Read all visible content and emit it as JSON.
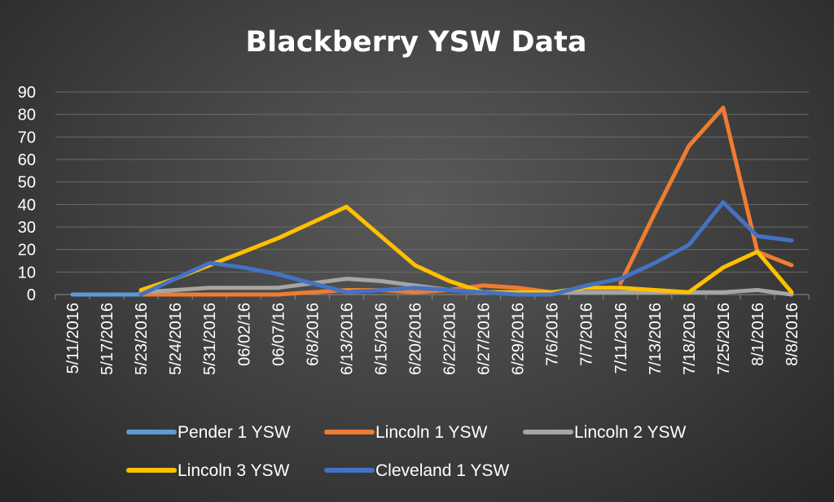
{
  "chart_data": {
    "type": "line",
    "title": "Blackberry YSW Data",
    "xlabel": "",
    "ylabel": "",
    "ylim": [
      0,
      90
    ],
    "yticks": [
      0,
      10,
      20,
      30,
      40,
      50,
      60,
      70,
      80,
      90
    ],
    "grid": true,
    "legend_position": "bottom",
    "categories": [
      "5/11/2016",
      "5/17/2016",
      "5/23/2016",
      "5/24/2016",
      "5/31/2016",
      "06/02/16",
      "06/07/16",
      "6/8/2016",
      "6/13/2016",
      "6/15/2016",
      "6/20/2016",
      "6/22/2016",
      "6/27/2016",
      "6/29/2016",
      "7/6/2016",
      "7/7/2016",
      "7/11/2016",
      "7/13/2016",
      "7/18/2016",
      "7/25/2016",
      "8/1/2016",
      "8/8/2016"
    ],
    "series": [
      {
        "name": "Pender 1 YSW",
        "color": "#5b9bd5",
        "values": [
          0,
          0,
          0,
          null,
          null,
          null,
          null,
          null,
          null,
          null,
          null,
          null,
          null,
          null,
          null,
          null,
          null,
          null,
          null,
          null,
          null,
          null
        ]
      },
      {
        "name": "Lincoln 1 YSW",
        "color": "#ed7d31",
        "values": [
          null,
          null,
          0,
          0,
          0,
          0,
          0,
          1,
          2,
          2,
          1,
          2,
          4,
          3,
          1,
          null,
          5,
          36,
          66,
          83,
          19,
          13
        ]
      },
      {
        "name": "Lincoln 2 YSW",
        "color": "#a5a5a5",
        "values": [
          null,
          null,
          1,
          2,
          3,
          3,
          3,
          5,
          7,
          6,
          4,
          2,
          1,
          1,
          1,
          1,
          1,
          1,
          1,
          1,
          2,
          0
        ]
      },
      {
        "name": "Lincoln 3 YSW",
        "color": "#ffc000",
        "values": [
          null,
          null,
          2,
          7,
          13,
          19,
          25,
          32,
          39,
          26,
          13,
          6,
          1,
          1,
          1,
          3,
          3,
          2,
          1,
          12,
          19,
          1
        ]
      },
      {
        "name": "Cleveland 1 YSW",
        "color": "#4472c4",
        "values": [
          null,
          null,
          0,
          7,
          14,
          12,
          9,
          5,
          1,
          2,
          3,
          2,
          1,
          0,
          0,
          4,
          7,
          14,
          22,
          41,
          26,
          24
        ]
      }
    ]
  }
}
